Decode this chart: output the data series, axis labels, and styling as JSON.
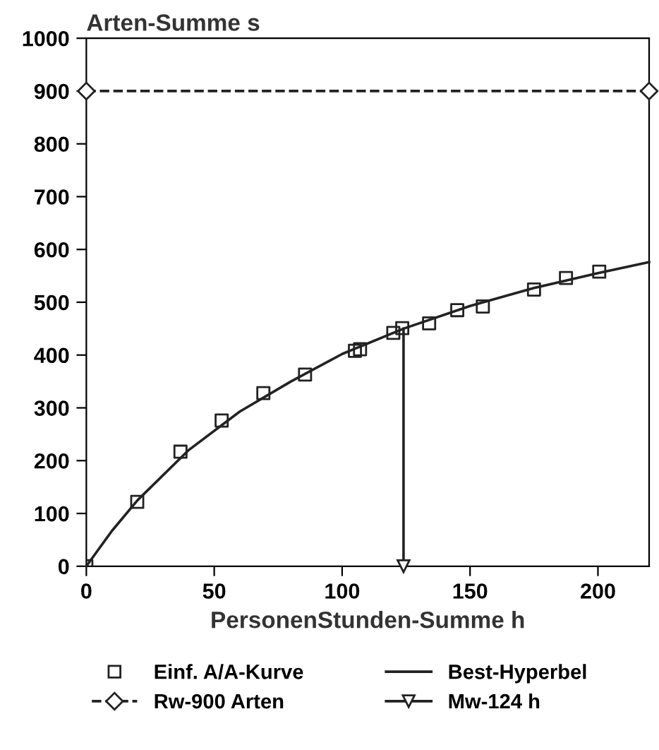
{
  "chart_data": {
    "type": "scatter",
    "xlabel": "PersonenStunden-Summe h",
    "ylabel": "Arten-Summe s",
    "xlim": [
      0,
      220
    ],
    "ylim": [
      0,
      1000
    ],
    "xticks": [
      0,
      50,
      100,
      150,
      200
    ],
    "yticks": [
      0,
      100,
      200,
      300,
      400,
      500,
      600,
      700,
      800,
      900,
      1000
    ],
    "grid": false,
    "legend": "bottom",
    "series": [
      {
        "name": "Einf. A/A-Kurve",
        "marker": "square",
        "color": "#222222",
        "x": [
          0,
          19.9,
          36.8,
          52.9,
          69.2,
          85.5,
          105,
          107,
          120,
          123.5,
          134,
          145,
          155,
          175,
          187.5,
          200.5
        ],
        "values": [
          0,
          122,
          217,
          276,
          328,
          363,
          408,
          411,
          442,
          451,
          460,
          485,
          492,
          524,
          546,
          558
        ]
      },
      {
        "name": "Rw-900 Arten",
        "type": "line",
        "marker": "diamond",
        "line_style": "dashed",
        "color": "#222222",
        "x": [
          0,
          220
        ],
        "values": [
          900,
          900
        ]
      },
      {
        "name": "Best-Hyperbel",
        "type": "line",
        "marker": "none",
        "line_style": "solid",
        "color": "#222222",
        "x": [
          0,
          10,
          20,
          40,
          60,
          80,
          100,
          124,
          150,
          175,
          200,
          220
        ],
        "values": [
          0,
          67,
          125,
          220,
          293,
          350,
          402,
          450,
          493,
          527,
          555,
          576
        ]
      },
      {
        "name": "Mw-124 h",
        "type": "line",
        "marker": "triangle",
        "line_style": "solid",
        "color": "#222222",
        "x": [
          124,
          124
        ],
        "values": [
          450,
          0
        ]
      }
    ]
  }
}
